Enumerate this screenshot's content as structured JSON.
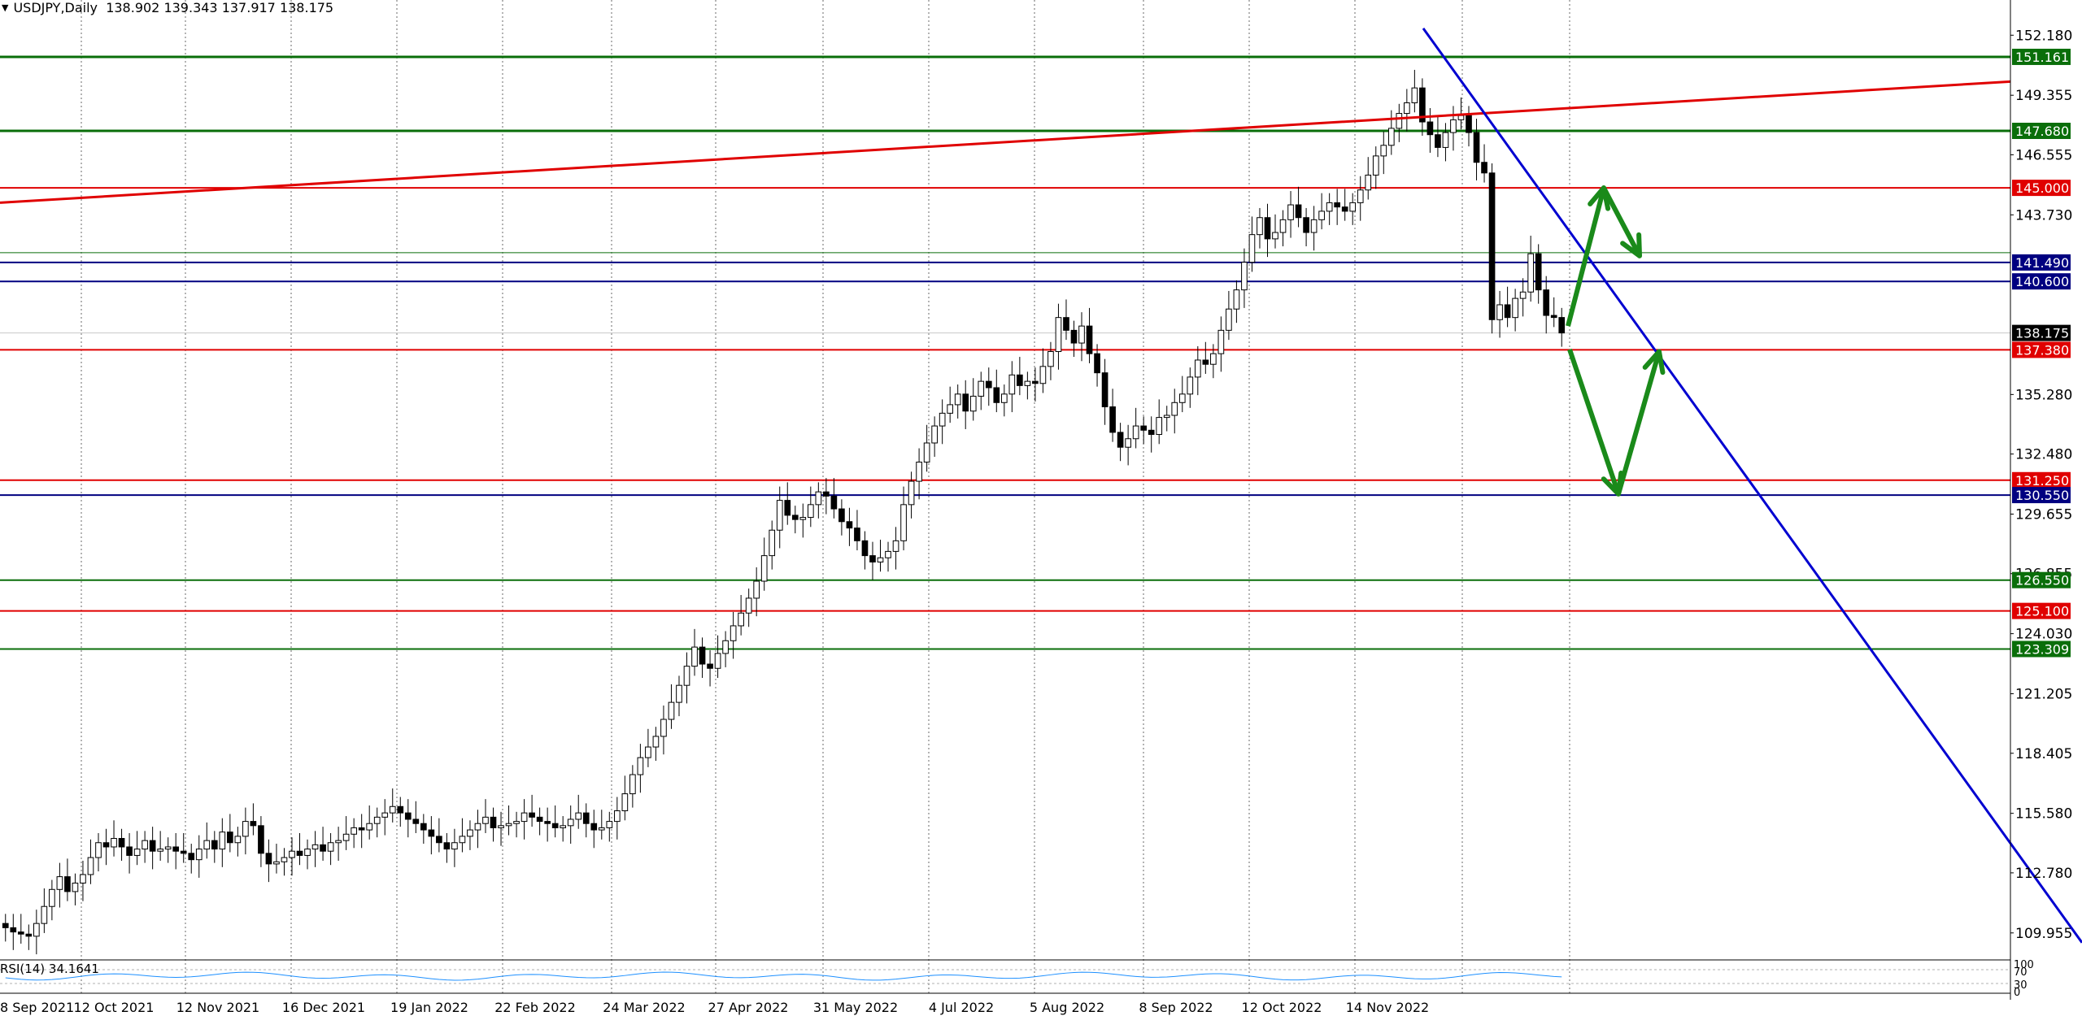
{
  "header": {
    "symbol_info": "USDJPY,Daily  138.902 139.343 137.917 138.175"
  },
  "rsi": {
    "label": "RSI(14) 34.1641",
    "scale_labels": [
      "100",
      "70",
      "30",
      "0"
    ]
  },
  "colors": {
    "support_green": "#0a6e0a",
    "resistance_red": "#e00000",
    "navy": "#000080",
    "trend_blue": "#0000d0",
    "arrow_green": "#1a8a1a",
    "grid": "#6a6a6a",
    "candle": "#000000",
    "rsi_line": "#1e90ff"
  },
  "chart_data": {
    "type": "candlestick",
    "title": "USDJPY,Daily",
    "ohlc_last": {
      "open": 138.902,
      "high": 139.343,
      "low": 137.917,
      "close": 138.175
    },
    "current_price": "138.175",
    "ylim": [
      108.8,
      153.3
    ],
    "y_ticks": [
      "152.180",
      "149.355",
      "146.555",
      "143.730",
      "135.280",
      "132.480",
      "129.655",
      "126.855",
      "124.030",
      "121.205",
      "118.405",
      "115.580",
      "112.780",
      "109.955"
    ],
    "x_ticks": [
      "8 Sep 2021",
      "12 Oct 2021",
      "12 Nov 2021",
      "16 Dec 2021",
      "19 Jan 2022",
      "22 Feb 2022",
      "24 Mar 2022",
      "27 Apr 2022",
      "31 May 2022",
      "4 Jul 2022",
      "5 Aug 2022",
      "8 Sep 2022",
      "12 Oct 2022",
      "14 Nov 2022"
    ],
    "closes": [
      110.2,
      110.0,
      109.9,
      109.8,
      110.4,
      111.2,
      112.0,
      112.6,
      111.9,
      112.3,
      112.7,
      113.5,
      114.2,
      114.0,
      114.4,
      114.0,
      113.6,
      113.9,
      114.3,
      113.8,
      113.9,
      114.0,
      113.8,
      113.7,
      113.4,
      113.9,
      114.3,
      113.9,
      114.7,
      114.2,
      114.5,
      115.2,
      115.0,
      113.7,
      113.2,
      113.3,
      113.5,
      113.8,
      113.6,
      113.9,
      114.1,
      113.8,
      114.2,
      114.3,
      114.6,
      114.9,
      114.8,
      115.1,
      115.4,
      115.6,
      115.9,
      115.6,
      115.3,
      115.1,
      114.8,
      114.5,
      114.2,
      113.9,
      114.2,
      114.5,
      114.8,
      115.1,
      115.4,
      114.9,
      115.0,
      115.1,
      115.2,
      115.6,
      115.4,
      115.2,
      115.1,
      114.9,
      115.0,
      115.3,
      115.6,
      115.1,
      114.8,
      114.9,
      115.2,
      115.7,
      116.5,
      117.4,
      118.2,
      118.7,
      119.2,
      120.0,
      120.8,
      121.6,
      122.5,
      123.4,
      122.6,
      122.4,
      123.1,
      123.7,
      124.4,
      125.0,
      125.7,
      126.5,
      127.7,
      128.9,
      130.3,
      129.6,
      129.4,
      129.5,
      130.1,
      130.7,
      130.5,
      129.9,
      129.3,
      129.0,
      128.4,
      127.7,
      127.4,
      127.6,
      127.9,
      128.4,
      130.1,
      131.2,
      132.1,
      133.0,
      133.8,
      134.4,
      134.8,
      135.3,
      134.5,
      135.2,
      135.9,
      135.6,
      134.9,
      135.3,
      136.2,
      135.7,
      135.9,
      135.8,
      136.6,
      137.3,
      138.9,
      138.3,
      137.7,
      138.5,
      137.2,
      136.3,
      134.7,
      133.5,
      132.8,
      133.2,
      133.8,
      133.6,
      133.4,
      134.2,
      134.3,
      134.9,
      135.3,
      136.1,
      136.9,
      136.7,
      137.2,
      138.3,
      139.3,
      140.2,
      141.5,
      142.8,
      143.6,
      142.6,
      142.9,
      143.5,
      144.2,
      143.6,
      142.9,
      143.5,
      143.9,
      144.3,
      144.1,
      143.9,
      144.3,
      144.9,
      145.6,
      146.5,
      147.0,
      147.8,
      148.5,
      149.0,
      149.7,
      148.1,
      147.5,
      146.9,
      147.6,
      148.2,
      148.4,
      147.6,
      146.2,
      145.7,
      138.8,
      139.5,
      138.9,
      139.8,
      140.1,
      141.9,
      140.2,
      139.0,
      138.902,
      138.175
    ]
  }
}
